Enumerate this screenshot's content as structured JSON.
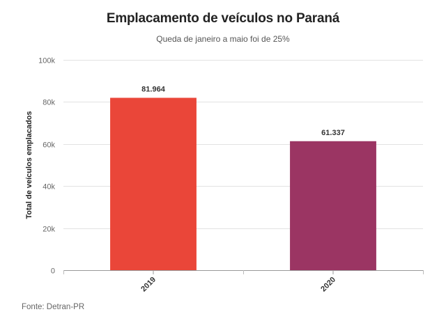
{
  "chart_data": {
    "type": "bar",
    "title": "Emplacamento de veículos no Paraná",
    "subtitle": "Queda de janeiro a maio foi de 25%",
    "xlabel": "",
    "ylabel": "Total de veículos emplacados",
    "categories": [
      "2019",
      "2020"
    ],
    "values": [
      81964,
      61337
    ],
    "value_labels": [
      "81.964",
      "61.337"
    ],
    "colors": [
      "#ea4639",
      "#9b3563"
    ],
    "ylim": [
      0,
      100000
    ],
    "yticks": [
      0,
      20000,
      40000,
      60000,
      80000,
      100000
    ],
    "ytick_labels": [
      "0",
      "20k",
      "40k",
      "60k",
      "80k",
      "100k"
    ],
    "grid": true,
    "source": "Fonte: Detran-PR"
  }
}
